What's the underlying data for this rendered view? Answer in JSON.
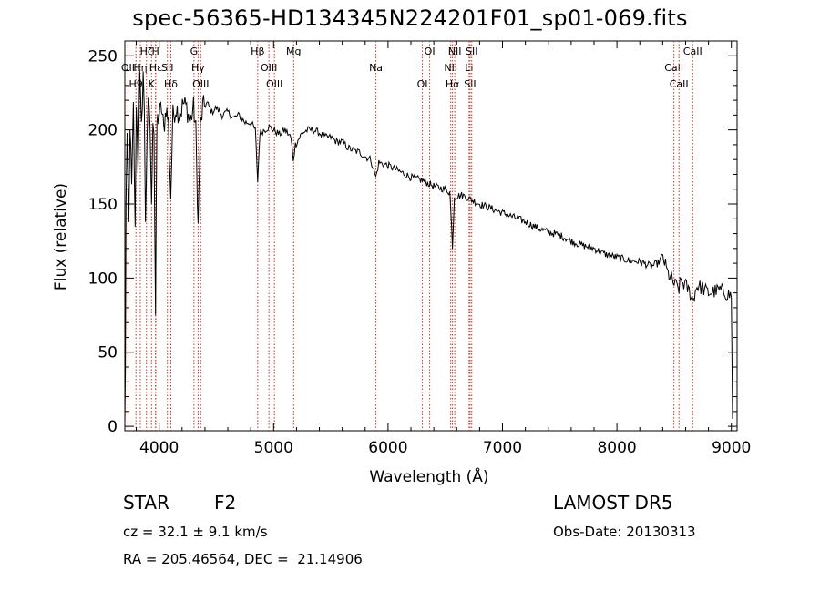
{
  "chart_data": {
    "type": "line",
    "title": "spec-56365-HD134345N224201F01_sp01-069.fits",
    "xlabel": "Wavelength (Å)",
    "ylabel": "Flux (relative)",
    "xlim": [
      3700,
      9050
    ],
    "ylim": [
      -3,
      260
    ],
    "xticks": [
      4000,
      5000,
      6000,
      7000,
      8000,
      9000
    ],
    "yticks": [
      0,
      50,
      100,
      150,
      200,
      250
    ],
    "grid": false,
    "series": [
      {
        "values": [
          [
            3700,
            0
          ],
          [
            3705,
            40
          ],
          [
            3710,
            150
          ],
          [
            3720,
            190
          ],
          [
            3735,
            135
          ],
          [
            3745,
            205
          ],
          [
            3760,
            160
          ],
          [
            3775,
            215
          ],
          [
            3790,
            130
          ],
          [
            3800,
            220
          ],
          [
            3815,
            175
          ],
          [
            3830,
            235
          ],
          [
            3845,
            200
          ],
          [
            3860,
            240
          ],
          [
            3870,
            210
          ],
          [
            3880,
            140
          ],
          [
            3895,
            200
          ],
          [
            3905,
            215
          ],
          [
            3920,
            205
          ],
          [
            3933,
            145
          ],
          [
            3945,
            210
          ],
          [
            3955,
            200
          ],
          [
            3968,
            75
          ],
          [
            3980,
            205
          ],
          [
            4000,
            210
          ],
          [
            4020,
            215
          ],
          [
            4040,
            200
          ],
          [
            4060,
            215
          ],
          [
            4080,
            205
          ],
          [
            4101,
            155
          ],
          [
            4120,
            210
          ],
          [
            4150,
            215
          ],
          [
            4180,
            210
          ],
          [
            4210,
            218
          ],
          [
            4240,
            215
          ],
          [
            4270,
            205
          ],
          [
            4300,
            215
          ],
          [
            4320,
            200
          ],
          [
            4340,
            135
          ],
          [
            4360,
            200
          ],
          [
            4380,
            215
          ],
          [
            4420,
            218
          ],
          [
            4460,
            212
          ],
          [
            4500,
            215
          ],
          [
            4550,
            210
          ],
          [
            4600,
            212
          ],
          [
            4650,
            208
          ],
          [
            4700,
            210
          ],
          [
            4750,
            205
          ],
          [
            4800,
            205
          ],
          [
            4840,
            200
          ],
          [
            4861,
            165
          ],
          [
            4880,
            198
          ],
          [
            4920,
            200
          ],
          [
            4960,
            202
          ],
          [
            5000,
            200
          ],
          [
            5050,
            197
          ],
          [
            5100,
            200
          ],
          [
            5150,
            195
          ],
          [
            5172,
            180
          ],
          [
            5190,
            190
          ],
          [
            5250,
            198
          ],
          [
            5300,
            200
          ],
          [
            5350,
            200
          ],
          [
            5400,
            198
          ],
          [
            5450,
            195
          ],
          [
            5500,
            195
          ],
          [
            5550,
            192
          ],
          [
            5600,
            192
          ],
          [
            5650,
            188
          ],
          [
            5700,
            186
          ],
          [
            5750,
            185
          ],
          [
            5800,
            182
          ],
          [
            5850,
            180
          ],
          [
            5893,
            168
          ],
          [
            5920,
            178
          ],
          [
            6000,
            176
          ],
          [
            6100,
            172
          ],
          [
            6200,
            168
          ],
          [
            6300,
            166
          ],
          [
            6400,
            162
          ],
          [
            6500,
            160
          ],
          [
            6540,
            158
          ],
          [
            6563,
            122
          ],
          [
            6580,
            155
          ],
          [
            6650,
            156
          ],
          [
            6700,
            154
          ],
          [
            6800,
            150
          ],
          [
            6900,
            147
          ],
          [
            7000,
            144
          ],
          [
            7100,
            141
          ],
          [
            7200,
            138
          ],
          [
            7300,
            134
          ],
          [
            7400,
            131
          ],
          [
            7500,
            129
          ],
          [
            7600,
            125
          ],
          [
            7700,
            122
          ],
          [
            7800,
            120
          ],
          [
            7900,
            116
          ],
          [
            8000,
            114
          ],
          [
            8100,
            112
          ],
          [
            8200,
            111
          ],
          [
            8300,
            108
          ],
          [
            8360,
            110
          ],
          [
            8400,
            115
          ],
          [
            8440,
            104
          ],
          [
            8470,
            100
          ],
          [
            8500,
            96
          ],
          [
            8542,
            93
          ],
          [
            8560,
            98
          ],
          [
            8600,
            95
          ],
          [
            8640,
            90
          ],
          [
            8662,
            85
          ],
          [
            8700,
            95
          ],
          [
            8750,
            93
          ],
          [
            8800,
            90
          ],
          [
            8850,
            91
          ],
          [
            8900,
            92
          ],
          [
            8950,
            90
          ],
          [
            9000,
            88
          ],
          [
            9005,
            50
          ],
          [
            9010,
            5
          ]
        ]
      }
    ],
    "lines": [
      {
        "w": 3727,
        "label": "OII",
        "row": 2
      },
      {
        "w": 3797,
        "label": "H9",
        "row": 3
      },
      {
        "w": 3835,
        "label": "Hη",
        "row": 2
      },
      {
        "w": 3889,
        "label": "Hζ",
        "row": 1
      },
      {
        "w": 3933,
        "label": "K",
        "row": 3
      },
      {
        "w": 3968,
        "label": "H",
        "row": 1
      },
      {
        "w": 3970,
        "label": "Hε",
        "row": 2
      },
      {
        "w": 4072,
        "label": "SII",
        "row": 2
      },
      {
        "w": 4102,
        "label": "Hδ",
        "row": 3
      },
      {
        "w": 4304,
        "label": "G",
        "row": 1
      },
      {
        "w": 4340,
        "label": "Hγ",
        "row": 2
      },
      {
        "w": 4363,
        "label": "OIII",
        "row": 3
      },
      {
        "w": 4861,
        "label": "Hβ",
        "row": 1
      },
      {
        "w": 4959,
        "label": "OIII",
        "row": 2
      },
      {
        "w": 5007,
        "label": "OIII",
        "row": 3
      },
      {
        "w": 5175,
        "label": "Mg",
        "row": 1
      },
      {
        "w": 5894,
        "label": "Na",
        "row": 2
      },
      {
        "w": 6300,
        "label": "OI",
        "row": 3
      },
      {
        "w": 6364,
        "label": "OI",
        "row": 1
      },
      {
        "w": 6548,
        "label": "NII",
        "row": 2
      },
      {
        "w": 6563,
        "label": "Hα",
        "row": 3
      },
      {
        "w": 6583,
        "label": "NII",
        "row": 1
      },
      {
        "w": 6708,
        "label": "Li",
        "row": 2
      },
      {
        "w": 6717,
        "label": "SII",
        "row": 3
      },
      {
        "w": 6731,
        "label": "SII",
        "row": 1
      },
      {
        "w": 8498,
        "label": "CaII",
        "row": 2
      },
      {
        "w": 8542,
        "label": "CaII",
        "row": 3
      },
      {
        "w": 8662,
        "label": "CaII",
        "row": 1
      }
    ]
  },
  "info": {
    "class": "STAR",
    "subclass": "F2",
    "survey": "LAMOST DR5",
    "cz": "cz = 32.1 ± 9.1 km/s",
    "obs_date": "Obs-Date: 20130313",
    "radec": "RA = 205.46564, DEC =  21.14906"
  },
  "colors": {
    "line_marker": "#c0392b",
    "spectrum": "#000000"
  }
}
